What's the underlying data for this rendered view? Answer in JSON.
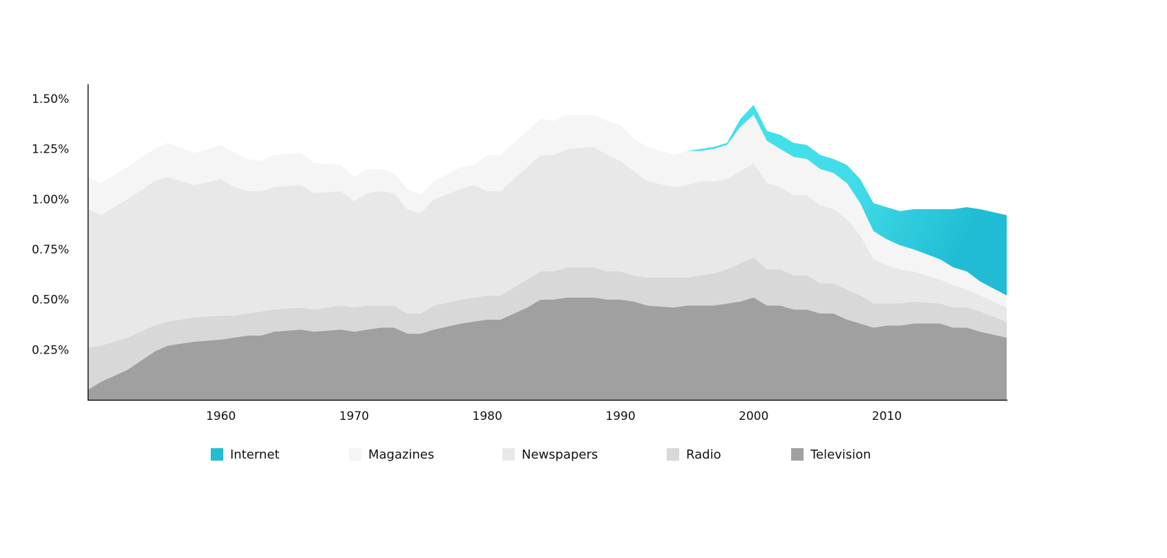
{
  "chart_data": {
    "type": "area",
    "stacked": true,
    "title": "",
    "xlabel": "",
    "ylabel": "",
    "xlim": [
      1950,
      2019
    ],
    "ylim": [
      0,
      1.5
    ],
    "grid": false,
    "legend_position": "bottom",
    "x_ticks": [
      1960,
      1970,
      1980,
      1990,
      2000,
      2010
    ],
    "x_tick_labels": [
      "1960",
      "1970",
      "1980",
      "1990",
      "2000",
      "2010"
    ],
    "y_ticks": [
      0.25,
      0.5,
      0.75,
      1.0,
      1.25,
      1.5
    ],
    "y_tick_labels": [
      "0.25%",
      "0.50%",
      "0.75%",
      "1.00%",
      "1.25%",
      "1.50%"
    ],
    "x": [
      1950,
      1951,
      1953,
      1955,
      1956,
      1958,
      1960,
      1961,
      1962,
      1963,
      1964,
      1966,
      1967,
      1969,
      1970,
      1971,
      1972,
      1973,
      1974,
      1975,
      1976,
      1978,
      1979,
      1980,
      1981,
      1983,
      1984,
      1985,
      1986,
      1988,
      1989,
      1990,
      1991,
      1992,
      1994,
      1995,
      1996,
      1997,
      1998,
      1999,
      2000,
      2001,
      2002,
      2003,
      2004,
      2005,
      2006,
      2007,
      2008,
      2009,
      2010,
      2011,
      2012,
      2014,
      2015,
      2016,
      2017,
      2019
    ],
    "series": [
      {
        "name": "Television",
        "color": "#a0a0a0",
        "values": [
          0.05,
          0.09,
          0.15,
          0.24,
          0.27,
          0.29,
          0.3,
          0.31,
          0.32,
          0.32,
          0.34,
          0.35,
          0.34,
          0.35,
          0.34,
          0.35,
          0.36,
          0.36,
          0.33,
          0.33,
          0.35,
          0.38,
          0.39,
          0.4,
          0.4,
          0.46,
          0.5,
          0.5,
          0.51,
          0.51,
          0.5,
          0.5,
          0.49,
          0.47,
          0.46,
          0.47,
          0.47,
          0.47,
          0.48,
          0.49,
          0.51,
          0.47,
          0.47,
          0.45,
          0.45,
          0.43,
          0.43,
          0.4,
          0.38,
          0.36,
          0.37,
          0.37,
          0.38,
          0.38,
          0.36,
          0.36,
          0.34,
          0.31
        ]
      },
      {
        "name": "Radio",
        "color": "#d8d8d8",
        "values": [
          0.21,
          0.18,
          0.16,
          0.13,
          0.12,
          0.12,
          0.12,
          0.11,
          0.11,
          0.12,
          0.11,
          0.11,
          0.11,
          0.12,
          0.12,
          0.12,
          0.11,
          0.11,
          0.1,
          0.1,
          0.12,
          0.12,
          0.12,
          0.12,
          0.12,
          0.14,
          0.14,
          0.14,
          0.15,
          0.15,
          0.14,
          0.14,
          0.13,
          0.14,
          0.15,
          0.14,
          0.15,
          0.16,
          0.17,
          0.19,
          0.2,
          0.18,
          0.18,
          0.17,
          0.17,
          0.15,
          0.15,
          0.15,
          0.14,
          0.12,
          0.11,
          0.11,
          0.11,
          0.1,
          0.1,
          0.1,
          0.1,
          0.08
        ]
      },
      {
        "name": "Newspapers",
        "color": "#e8e8e8",
        "values": [
          0.69,
          0.65,
          0.69,
          0.72,
          0.72,
          0.66,
          0.68,
          0.64,
          0.61,
          0.6,
          0.61,
          0.61,
          0.58,
          0.57,
          0.53,
          0.56,
          0.57,
          0.56,
          0.52,
          0.5,
          0.53,
          0.55,
          0.56,
          0.52,
          0.52,
          0.56,
          0.58,
          0.58,
          0.59,
          0.6,
          0.58,
          0.55,
          0.52,
          0.48,
          0.45,
          0.46,
          0.47,
          0.46,
          0.45,
          0.46,
          0.47,
          0.43,
          0.41,
          0.4,
          0.4,
          0.39,
          0.37,
          0.35,
          0.3,
          0.22,
          0.19,
          0.17,
          0.15,
          0.12,
          0.11,
          0.09,
          0.08,
          0.07
        ]
      },
      {
        "name": "Magazines",
        "color": "#f5f5f5",
        "values": [
          0.16,
          0.16,
          0.16,
          0.16,
          0.17,
          0.16,
          0.17,
          0.17,
          0.16,
          0.15,
          0.16,
          0.16,
          0.15,
          0.13,
          0.12,
          0.12,
          0.11,
          0.1,
          0.1,
          0.09,
          0.09,
          0.11,
          0.1,
          0.18,
          0.18,
          0.18,
          0.18,
          0.17,
          0.17,
          0.16,
          0.17,
          0.18,
          0.16,
          0.17,
          0.16,
          0.17,
          0.15,
          0.16,
          0.17,
          0.22,
          0.24,
          0.21,
          0.19,
          0.19,
          0.18,
          0.18,
          0.18,
          0.18,
          0.16,
          0.14,
          0.13,
          0.12,
          0.11,
          0.1,
          0.09,
          0.09,
          0.07,
          0.06
        ]
      },
      {
        "name": "Internet",
        "color": "#22bdd4",
        "start_year": 1995,
        "values": [
          0,
          0,
          0,
          0,
          0,
          0,
          0,
          0,
          0,
          0,
          0,
          0,
          0,
          0,
          0,
          0,
          0,
          0,
          0,
          0,
          0,
          0,
          0,
          0,
          0,
          0,
          0,
          0,
          0,
          0,
          0,
          0,
          0,
          0,
          0,
          0,
          0.01,
          0.01,
          0.01,
          0.04,
          0.05,
          0.05,
          0.07,
          0.07,
          0.07,
          0.07,
          0.07,
          0.09,
          0.12,
          0.14,
          0.16,
          0.17,
          0.2,
          0.25,
          0.29,
          0.32,
          0.36,
          0.4
        ]
      }
    ],
    "legend": [
      "Internet",
      "Magazines",
      "Newspapers",
      "Radio",
      "Television"
    ]
  }
}
